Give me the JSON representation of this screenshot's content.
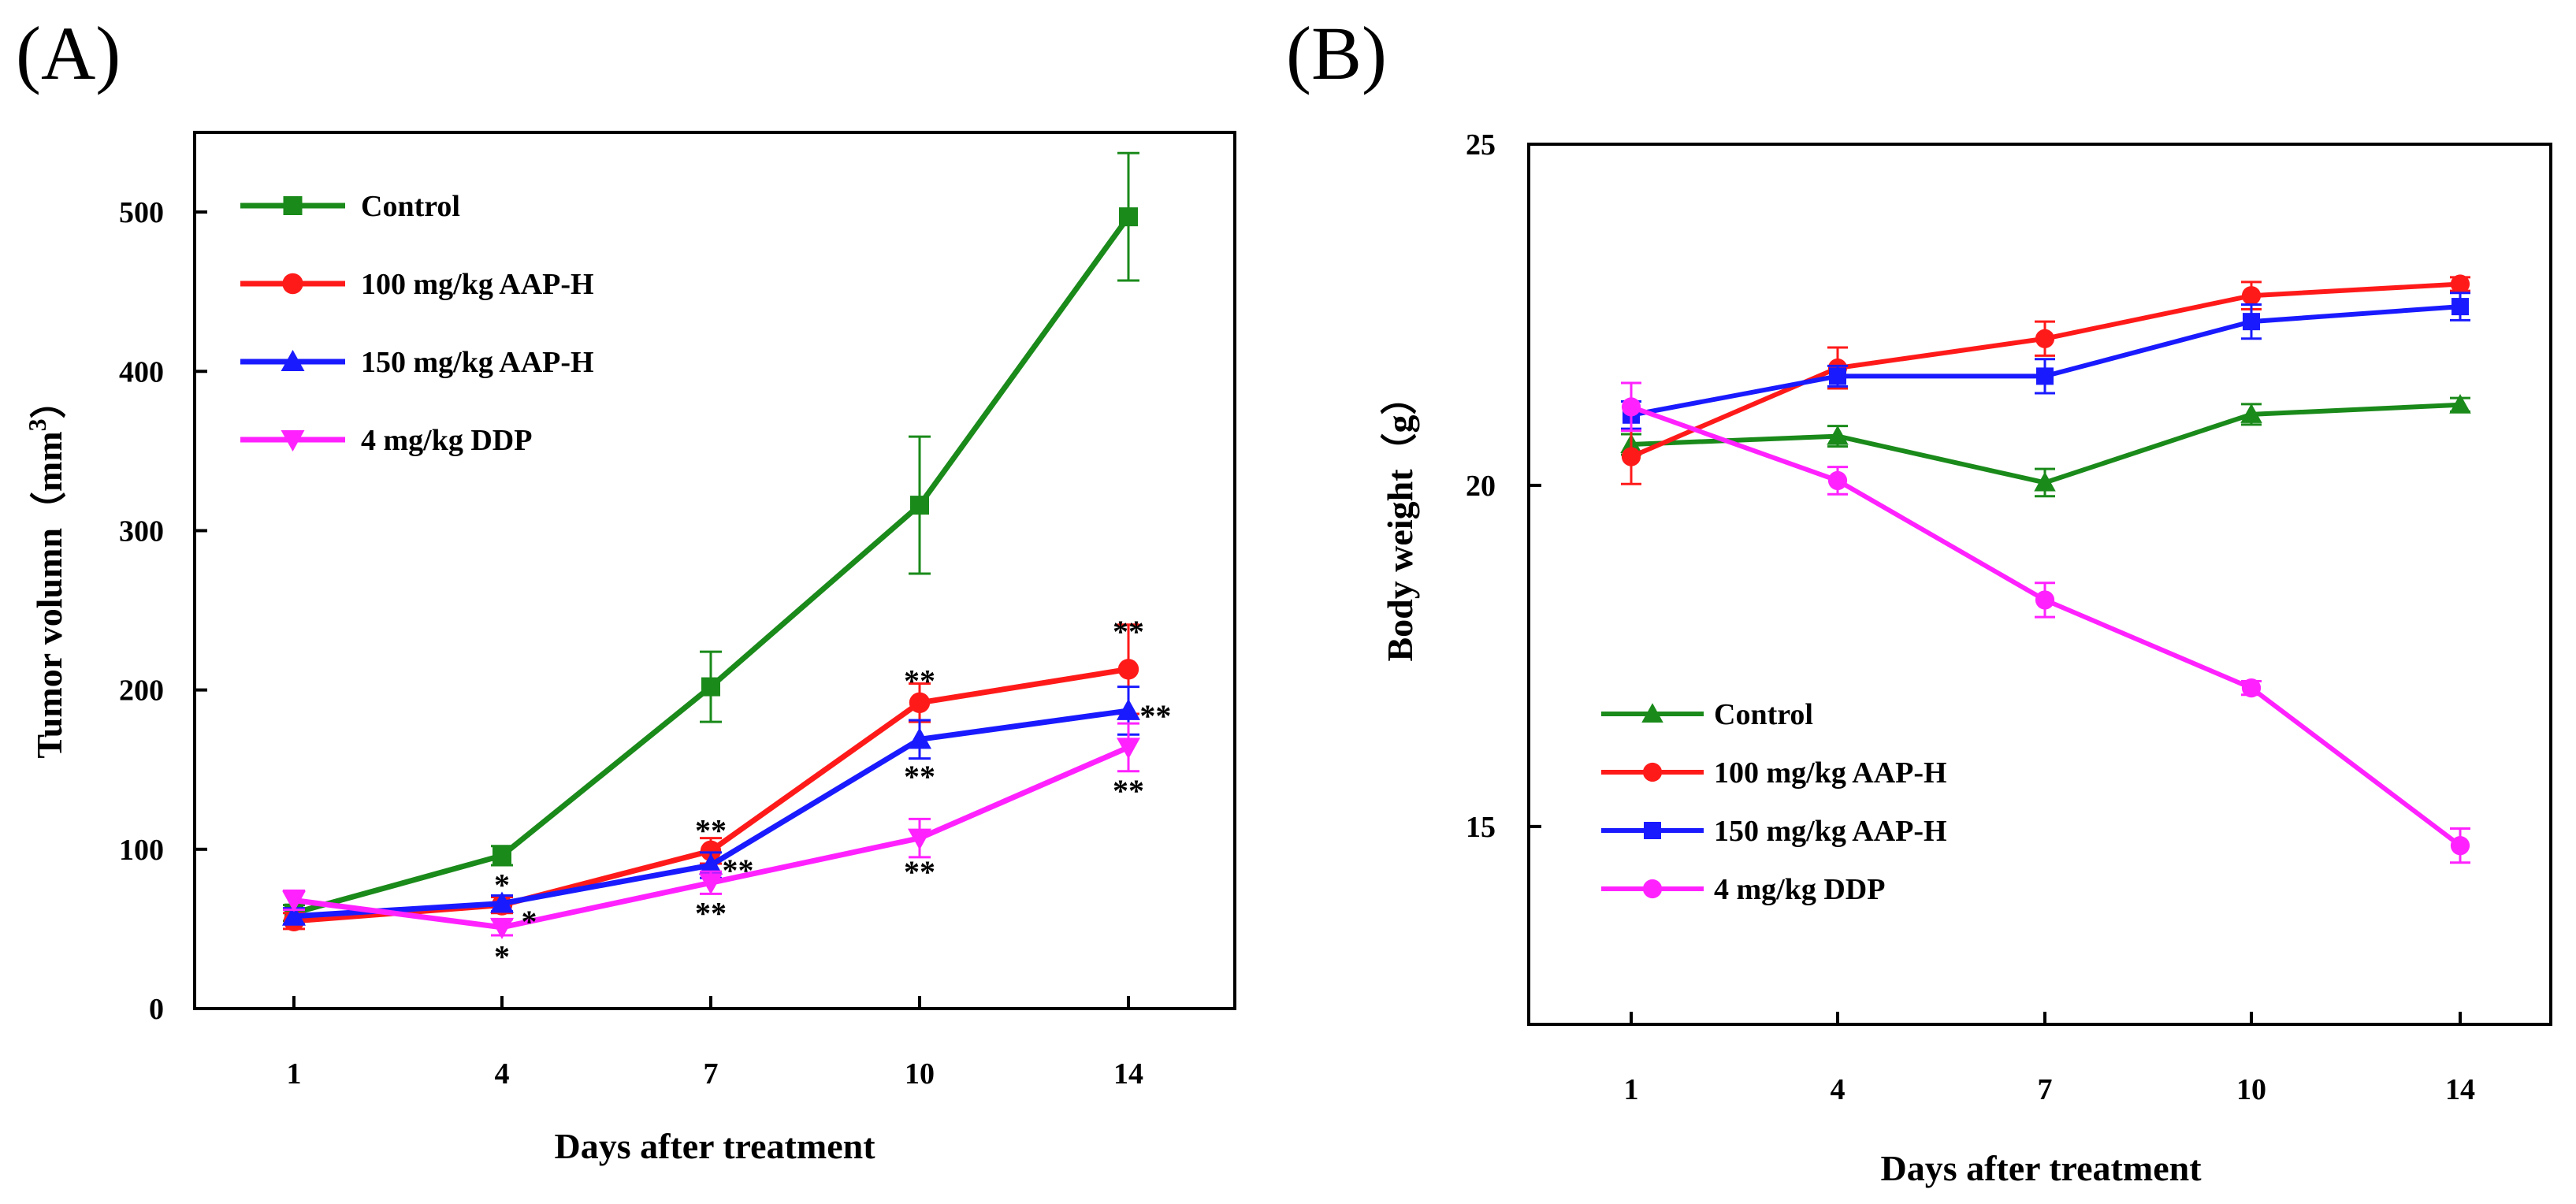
{
  "chart_data": [
    {
      "type": "line",
      "panel_label": "(A)",
      "xlabel": "Days after treatment",
      "ylabel": "Tumor volumn（mm",
      "ylabel_sup": "3",
      "ylabel_close": "）",
      "categories": [
        "1",
        "4",
        "7",
        "10",
        "14"
      ],
      "yticks": [
        "0",
        "100",
        "200",
        "300",
        "400",
        "500"
      ],
      "ylim": [
        0,
        550
      ],
      "legend_position": "top-left",
      "series": [
        {
          "name": "Control",
          "color": "#1a8a1a",
          "marker": "square",
          "values": [
            60,
            96,
            202,
            316,
            497
          ],
          "errors": [
            5,
            6,
            22,
            43,
            40
          ]
        },
        {
          "name": "100 mg/kg AAP-H",
          "color": "#ff1a1a",
          "marker": "circle",
          "values": [
            55,
            65,
            99,
            192,
            213
          ],
          "errors": [
            5,
            5,
            8,
            12,
            28
          ]
        },
        {
          "name": "150 mg/kg AAP-H",
          "color": "#1a1aff",
          "marker": "triangle-up",
          "values": [
            58,
            66,
            90,
            169,
            187
          ],
          "errors": [
            5,
            5,
            8,
            12,
            15
          ]
        },
        {
          "name": "4 mg/kg DDP",
          "color": "#ff22ff",
          "marker": "triangle-down",
          "values": [
            68,
            51,
            79,
            107,
            164
          ],
          "errors": [
            6,
            5,
            7,
            12,
            15
          ]
        }
      ],
      "annotations": [
        {
          "text": "*",
          "x": 1,
          "y": 78
        },
        {
          "text": "*",
          "x": 1.13,
          "y": 55
        },
        {
          "text": "*",
          "x": 1,
          "y": 33
        },
        {
          "text": "**",
          "x": 2,
          "y": 112
        },
        {
          "text": "**",
          "x": 2.13,
          "y": 87
        },
        {
          "text": "**",
          "x": 2,
          "y": 60
        },
        {
          "text": "**",
          "x": 3,
          "y": 206
        },
        {
          "text": "**",
          "x": 3,
          "y": 146
        },
        {
          "text": "**",
          "x": 3,
          "y": 86
        },
        {
          "text": "**",
          "x": 4,
          "y": 237
        },
        {
          "text": "**",
          "x": 4.13,
          "y": 184
        },
        {
          "text": "**",
          "x": 4,
          "y": 137
        }
      ]
    },
    {
      "type": "line",
      "panel_label": "(B)",
      "xlabel": "Days after treatment",
      "ylabel": "Body weight（g）",
      "categories": [
        "1",
        "4",
        "7",
        "10",
        "14"
      ],
      "yticks": [
        "15",
        "20",
        "25"
      ],
      "ylim": [
        12.1,
        25
      ],
      "legend_position": "bottom-left",
      "series": [
        {
          "name": "Control",
          "color": "#1a8a1a",
          "marker": "triangle-up",
          "values": [
            20.6,
            20.72,
            20.04,
            21.04,
            21.18
          ],
          "errors": [
            0.15,
            0.15,
            0.2,
            0.15,
            0.1
          ]
        },
        {
          "name": "100 mg/kg AAP-H",
          "color": "#ff1a1a",
          "marker": "circle",
          "values": [
            20.42,
            21.72,
            22.15,
            22.78,
            22.95
          ],
          "errors": [
            0.4,
            0.3,
            0.25,
            0.2,
            0.1
          ]
        },
        {
          "name": "150 mg/kg AAP-H",
          "color": "#1a1aff",
          "marker": "square",
          "values": [
            21.03,
            21.6,
            21.6,
            22.4,
            22.62
          ],
          "errors": [
            0.2,
            0.15,
            0.25,
            0.25,
            0.2
          ]
        },
        {
          "name": "4 mg/kg DDP",
          "color": "#ff22ff",
          "marker": "circle",
          "values": [
            21.15,
            20.07,
            18.32,
            17.03,
            14.72
          ],
          "errors": [
            0.35,
            0.2,
            0.25,
            0.1,
            0.25
          ]
        }
      ]
    }
  ]
}
